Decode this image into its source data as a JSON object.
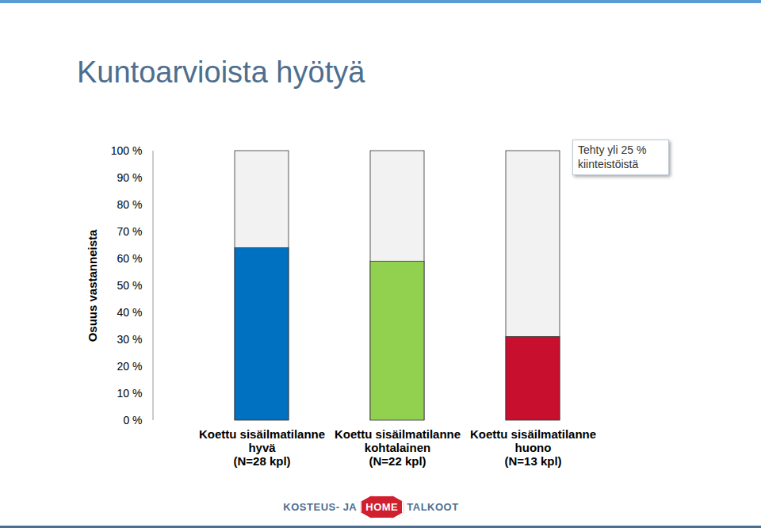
{
  "chart_data": {
    "type": "bar",
    "title": "Kuntoarvioista hyötyä",
    "y_label": "Osuus vastanneista",
    "categories": [
      "Koettu sisäilmatilanne\nhyvä\n(N=28 kpl)",
      "Koettu sisäilmatilanne\nkohtalainen\n(N=22 kpl)",
      "Koettu sisäilmatilanne\nhuono\n(N=13 kpl)"
    ],
    "values": [
      64,
      59,
      31
    ],
    "colors": [
      "#0070c0",
      "#92d050",
      "#c8102e"
    ],
    "ylim": [
      0,
      100
    ],
    "yticks": [
      {
        "value": 0,
        "label": "0 %"
      },
      {
        "value": 10,
        "label": "10 %"
      },
      {
        "value": 20,
        "label": "20 %"
      },
      {
        "value": 30,
        "label": "30 %"
      },
      {
        "value": 40,
        "label": "40 %"
      },
      {
        "value": 50,
        "label": "50 %"
      },
      {
        "value": 60,
        "label": "60 %"
      },
      {
        "value": 70,
        "label": "70 %"
      },
      {
        "value": 80,
        "label": "80 %"
      },
      {
        "value": 90,
        "label": "90 %"
      },
      {
        "value": 100,
        "label": "100 %"
      }
    ],
    "grid": false,
    "data_labels": false,
    "annotation": "Tehty yli 25 % kiinteistöistä",
    "footer": [
      "KOSTEUS- JA",
      "HOME",
      "TALKOOT"
    ]
  }
}
